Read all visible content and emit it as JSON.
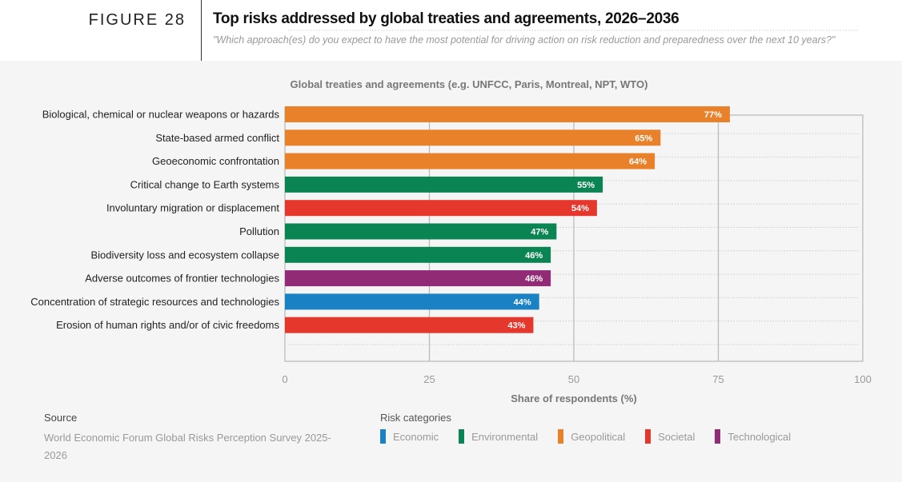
{
  "header": {
    "figure_label": "FIGURE 28",
    "title": "Top risks addressed by global treaties and agreements, 2026–2036",
    "subtitle": "\"Which approach(es) do you expect to have the most potential for driving action on risk reduction and preparedness over the next 10 years?\""
  },
  "chart_data": {
    "type": "bar",
    "orientation": "horizontal",
    "title": "Global treaties and agreements (e.g. UNFCC, Paris, Montreal, NPT, WTO)",
    "xlabel": "Share of respondents (%)",
    "xlim": [
      0,
      100
    ],
    "xticks": [
      "0",
      "25",
      "50",
      "75",
      "100"
    ],
    "grid": true,
    "categories": [
      "Biological, chemical or nuclear weapons or hazards",
      "State-based armed conflict",
      "Geoeconomic confrontation",
      "Critical change to Earth systems",
      "Involuntary migration or displacement",
      "Pollution",
      "Biodiversity loss and ecosystem collapse",
      "Adverse outcomes of frontier technologies",
      "Concentration of strategic resources and technologies",
      "Erosion of human rights and/or of civic freedoms"
    ],
    "values": [
      77,
      65,
      64,
      55,
      54,
      47,
      46,
      46,
      44,
      43
    ],
    "data_labels": [
      "77%",
      "65%",
      "64%",
      "55%",
      "54%",
      "47%",
      "46%",
      "46%",
      "44%",
      "43%"
    ],
    "bar_categories": [
      "Geopolitical",
      "Geopolitical",
      "Geopolitical",
      "Environmental",
      "Societal",
      "Environmental",
      "Environmental",
      "Technological",
      "Economic",
      "Societal"
    ]
  },
  "legend": {
    "title": "Risk categories",
    "items": [
      {
        "label": "Economic",
        "color": "#1a82c4"
      },
      {
        "label": "Environmental",
        "color": "#0a8453"
      },
      {
        "label": "Geopolitical",
        "color": "#e8812a"
      },
      {
        "label": "Societal",
        "color": "#e5372c"
      },
      {
        "label": "Technological",
        "color": "#922b76"
      }
    ]
  },
  "source": {
    "heading": "Source",
    "text": "World Economic Forum Global Risks Perception Survey 2025-2026"
  }
}
